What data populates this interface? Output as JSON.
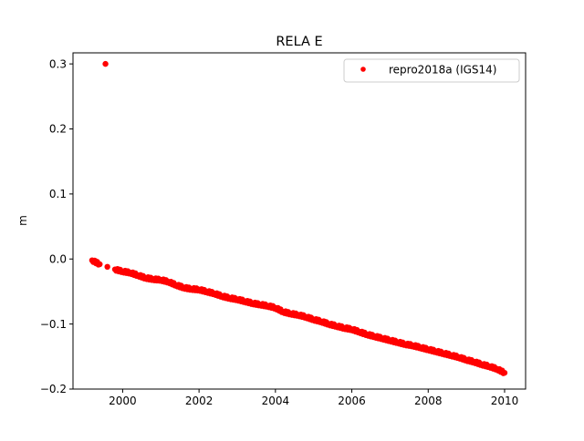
{
  "chart_data": {
    "type": "scatter",
    "title": "RELA E",
    "xlabel": "",
    "ylabel": "m",
    "xlim": [
      1998.7,
      2010.55
    ],
    "ylim": [
      -0.2,
      0.317
    ],
    "xticks": [
      2000,
      2002,
      2004,
      2006,
      2008,
      2010
    ],
    "xtick_labels": [
      "2000",
      "2002",
      "2004",
      "2006",
      "2008",
      "2010"
    ],
    "yticks": [
      -0.2,
      -0.1,
      0.0,
      0.1,
      0.2,
      0.3
    ],
    "ytick_labels": [
      "−0.2",
      "−0.1",
      "0.0",
      "0.1",
      "0.2",
      "0.3"
    ],
    "grid": false,
    "legend_position": "top-right",
    "series": [
      {
        "name": "repro2018a (IGS14)",
        "color": "#ff0000",
        "marker": "circle",
        "x": [
          1999.2,
          1999.4,
          1999.55,
          1999.6,
          1999.8,
          2000.0,
          2000.2,
          2000.4,
          2000.6,
          2000.8,
          2001.0,
          2001.2,
          2001.4,
          2001.6,
          2001.8,
          2002.0,
          2002.2,
          2002.4,
          2002.6,
          2002.8,
          2003.0,
          2003.2,
          2003.4,
          2003.6,
          2003.8,
          2004.0,
          2004.2,
          2004.4,
          2004.6,
          2004.8,
          2005.0,
          2005.2,
          2005.4,
          2005.6,
          2005.8,
          2006.0,
          2006.2,
          2006.4,
          2006.6,
          2006.8,
          2007.0,
          2007.2,
          2007.4,
          2007.6,
          2007.8,
          2008.0,
          2008.2,
          2008.4,
          2008.6,
          2008.8,
          2009.0,
          2009.2,
          2009.4,
          2009.6,
          2009.8,
          2010.0
        ],
        "y": [
          -0.002,
          -0.008,
          0.3,
          -0.012,
          -0.016,
          -0.019,
          -0.021,
          -0.025,
          -0.029,
          -0.031,
          -0.032,
          -0.035,
          -0.04,
          -0.044,
          -0.046,
          -0.047,
          -0.05,
          -0.053,
          -0.057,
          -0.06,
          -0.062,
          -0.065,
          -0.068,
          -0.07,
          -0.072,
          -0.075,
          -0.081,
          -0.084,
          -0.086,
          -0.089,
          -0.093,
          -0.096,
          -0.1,
          -0.103,
          -0.106,
          -0.108,
          -0.112,
          -0.116,
          -0.119,
          -0.122,
          -0.125,
          -0.128,
          -0.131,
          -0.133,
          -0.136,
          -0.139,
          -0.142,
          -0.145,
          -0.148,
          -0.151,
          -0.155,
          -0.158,
          -0.162,
          -0.165,
          -0.169,
          -0.175
        ]
      }
    ]
  }
}
